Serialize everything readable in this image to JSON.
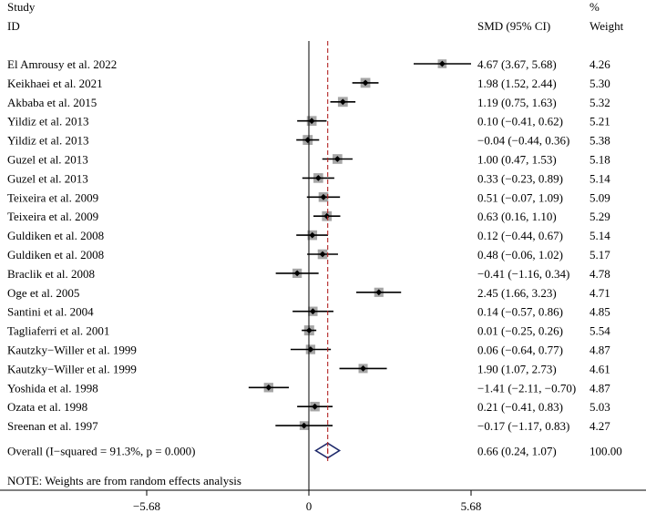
{
  "chart_data": {
    "type": "forest",
    "header": {
      "study_line1": "Study",
      "study_line2": "ID",
      "effect_label": "SMD (95% CI)",
      "weight_line1": "%",
      "weight_line2": "Weight"
    },
    "studies": [
      {
        "id": "El Amrousy et al. 2022",
        "smd": 4.67,
        "lo": 3.67,
        "hi": 5.68,
        "ci_text": "4.67 (3.67, 5.68)",
        "weight": "4.26"
      },
      {
        "id": "Keikhaei et al. 2021",
        "smd": 1.98,
        "lo": 1.52,
        "hi": 2.44,
        "ci_text": "1.98 (1.52, 2.44)",
        "weight": "5.30"
      },
      {
        "id": "Akbaba et al. 2015",
        "smd": 1.19,
        "lo": 0.75,
        "hi": 1.63,
        "ci_text": "1.19 (0.75, 1.63)",
        "weight": "5.32"
      },
      {
        "id": "Yildiz et al. 2013",
        "smd": 0.1,
        "lo": -0.41,
        "hi": 0.62,
        "ci_text": "0.10 (−0.41, 0.62)",
        "weight": "5.21"
      },
      {
        "id": "Yildiz et al. 2013",
        "smd": -0.04,
        "lo": -0.44,
        "hi": 0.36,
        "ci_text": "−0.04 (−0.44, 0.36)",
        "weight": "5.38"
      },
      {
        "id": "Guzel et al. 2013",
        "smd": 1.0,
        "lo": 0.47,
        "hi": 1.53,
        "ci_text": "1.00 (0.47, 1.53)",
        "weight": "5.18"
      },
      {
        "id": "Guzel et al. 2013",
        "smd": 0.33,
        "lo": -0.23,
        "hi": 0.89,
        "ci_text": "0.33 (−0.23, 0.89)",
        "weight": "5.14"
      },
      {
        "id": "Teixeira et al. 2009",
        "smd": 0.51,
        "lo": -0.07,
        "hi": 1.09,
        "ci_text": "0.51 (−0.07, 1.09)",
        "weight": "5.09"
      },
      {
        "id": "Teixeira et al. 2009",
        "smd": 0.63,
        "lo": 0.16,
        "hi": 1.1,
        "ci_text": "0.63 (0.16, 1.10)",
        "weight": "5.29"
      },
      {
        "id": "Guldiken et al. 2008",
        "smd": 0.12,
        "lo": -0.44,
        "hi": 0.67,
        "ci_text": "0.12 (−0.44, 0.67)",
        "weight": "5.14"
      },
      {
        "id": "Guldiken et al. 2008",
        "smd": 0.48,
        "lo": -0.06,
        "hi": 1.02,
        "ci_text": "0.48 (−0.06, 1.02)",
        "weight": "5.17"
      },
      {
        "id": "Braclik et al. 2008",
        "smd": -0.41,
        "lo": -1.16,
        "hi": 0.34,
        "ci_text": "−0.41 (−1.16, 0.34)",
        "weight": "4.78"
      },
      {
        "id": "Oge et al. 2005",
        "smd": 2.45,
        "lo": 1.66,
        "hi": 3.23,
        "ci_text": "2.45 (1.66, 3.23)",
        "weight": "4.71"
      },
      {
        "id": "Santini et al. 2004",
        "smd": 0.14,
        "lo": -0.57,
        "hi": 0.86,
        "ci_text": "0.14 (−0.57, 0.86)",
        "weight": "4.85"
      },
      {
        "id": "Tagliaferri et al. 2001",
        "smd": 0.01,
        "lo": -0.25,
        "hi": 0.26,
        "ci_text": "0.01 (−0.25, 0.26)",
        "weight": "5.54"
      },
      {
        "id": "Kautzky−Willer et al. 1999",
        "smd": 0.06,
        "lo": -0.64,
        "hi": 0.77,
        "ci_text": "0.06 (−0.64, 0.77)",
        "weight": "4.87"
      },
      {
        "id": "Kautzky−Willer et al. 1999",
        "smd": 1.9,
        "lo": 1.07,
        "hi": 2.73,
        "ci_text": "1.90 (1.07, 2.73)",
        "weight": "4.61"
      },
      {
        "id": "Yoshida et al. 1998",
        "smd": -1.41,
        "lo": -2.11,
        "hi": -0.7,
        "ci_text": "−1.41 (−2.11, −0.70)",
        "weight": "4.87"
      },
      {
        "id": "Ozata et al. 1998",
        "smd": 0.21,
        "lo": -0.41,
        "hi": 0.83,
        "ci_text": "0.21 (−0.41, 0.83)",
        "weight": "5.03"
      },
      {
        "id": "Sreenan et al. 1997",
        "smd": -0.17,
        "lo": -1.17,
        "hi": 0.83,
        "ci_text": "−0.17 (−1.17, 0.83)",
        "weight": "4.27"
      }
    ],
    "overall": {
      "label": "Overall  (I−squared = 91.3%, p = 0.000)",
      "smd": 0.66,
      "lo": 0.24,
      "hi": 1.07,
      "ci_text": "0.66 (0.24, 1.07)",
      "weight": "100.00"
    },
    "note": "NOTE: Weights are from random effects analysis",
    "xaxis": {
      "range": [
        -5.68,
        5.68
      ],
      "ticks": [
        -5.68,
        0,
        5.68
      ],
      "tick_labels": [
        "−5.68",
        "0",
        "5.68"
      ]
    },
    "colors": {
      "text": "#000000",
      "marker": "#000000",
      "weight_box": "#a6a6a6",
      "overall_line": "#b22222",
      "diamond": "#1f2a6b"
    }
  }
}
